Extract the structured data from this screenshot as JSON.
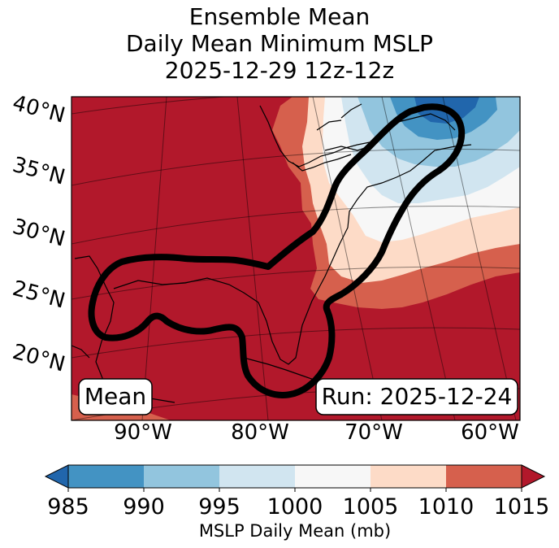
{
  "title": {
    "line1": "Ensemble Mean",
    "line2": "Daily Mean Minimum MSLP",
    "line3": "2025-12-29 12z-12z"
  },
  "map": {
    "lat_labels": [
      "40°N",
      "35°N",
      "30°N",
      "25°N",
      "20°N"
    ],
    "lon_labels": [
      "90°W",
      "80°W",
      "70°W",
      "60°W"
    ],
    "mean_box": "Mean",
    "run_box": "Run: 2025-12-24"
  },
  "colorbar": {
    "ticks": [
      "985",
      "990",
      "995",
      "1000",
      "1005",
      "1010",
      "1015"
    ],
    "label": "MSLP Daily Mean (mb)",
    "colors": [
      "#2166ac",
      "#4393c3",
      "#92c5de",
      "#d1e5f0",
      "#f7f7f7",
      "#fddbc7",
      "#d6604d",
      "#b2182b"
    ]
  }
}
